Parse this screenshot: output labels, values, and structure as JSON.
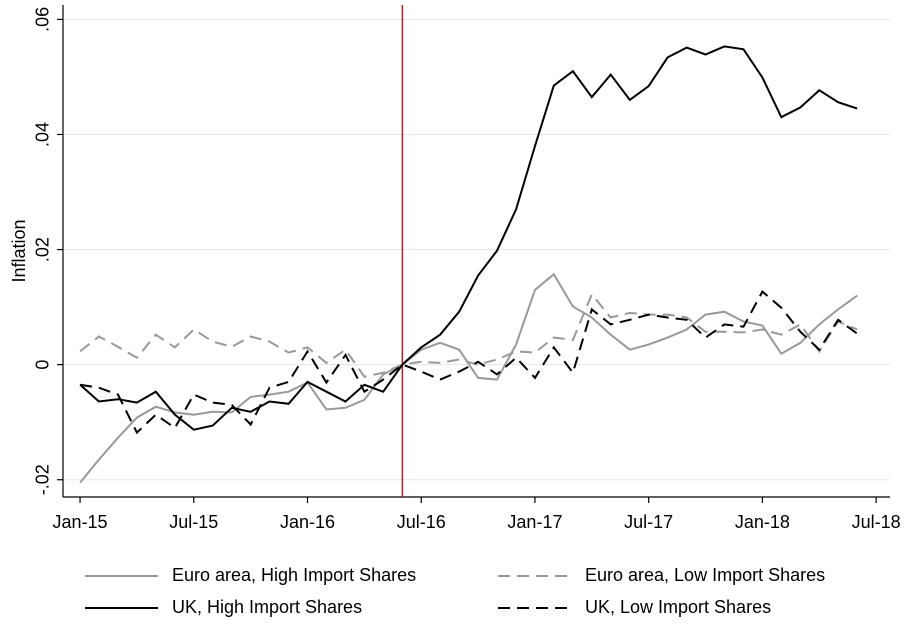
{
  "chart_data": {
    "type": "line",
    "y_label": "Inflation",
    "x": [
      2015,
      2015.083,
      2015.167,
      2015.25,
      2015.333,
      2015.417,
      2015.5,
      2015.583,
      2015.667,
      2015.75,
      2015.833,
      2015.917,
      2016,
      2016.083,
      2016.167,
      2016.25,
      2016.333,
      2016.417,
      2016.5,
      2016.583,
      2016.667,
      2016.75,
      2016.833,
      2016.917,
      2017,
      2017.083,
      2017.167,
      2017.25,
      2017.333,
      2017.417,
      2017.5,
      2017.583,
      2017.667,
      2017.75,
      2017.833,
      2017.917,
      2018,
      2018.083,
      2018.167,
      2018.25,
      2018.333,
      2018.417
    ],
    "series": [
      {
        "name": "Euro area, High Import Shares",
        "color": "#999999",
        "dashed": false,
        "values": [
          -0.0205,
          -0.0165,
          -0.0127,
          -0.0092,
          -0.0073,
          -0.0083,
          -0.0087,
          -0.0082,
          -0.0083,
          -0.0056,
          -0.0052,
          -0.0047,
          -0.0031,
          -0.0078,
          -0.0075,
          -0.0061,
          -0.0017,
          0,
          0.0026,
          0.0038,
          0.0026,
          -0.0023,
          -0.0026,
          0.0035,
          0.013,
          0.0157,
          0.0101,
          0.0082,
          0.0052,
          0.0026,
          0.0035,
          0.0047,
          0.0061,
          0.0087,
          0.0092,
          0.0075,
          0.0068,
          0.0019,
          0.0038,
          0.007,
          0.0096,
          0.012
        ]
      },
      {
        "name": "Euro area, Low Import Shares",
        "color": "#999999",
        "dashed": true,
        "values": [
          0.0023,
          0.0049,
          0.0031,
          0.0012,
          0.0052,
          0.003,
          0.0061,
          0.004,
          0.0031,
          0.0049,
          0.004,
          0.0021,
          0.003,
          0.0003,
          0.0026,
          -0.0021,
          -0.0014,
          0,
          0.0005,
          0.0003,
          0.0009,
          0,
          0.0009,
          0.0023,
          0.0021,
          0.0047,
          0.0043,
          0.0122,
          0.0082,
          0.009,
          0.0087,
          0.0087,
          0.0082,
          0.0057,
          0.0057,
          0.0056,
          0.0061,
          0.0052,
          0.007,
          0.0023,
          0.0075,
          0.0061
        ]
      },
      {
        "name": "UK, High Import Shares",
        "color": "#000000",
        "dashed": false,
        "values": [
          -0.0035,
          -0.0064,
          -0.006,
          -0.0066,
          -0.0047,
          -0.0087,
          -0.0113,
          -0.0106,
          -0.0075,
          -0.0082,
          -0.0064,
          -0.0068,
          -0.003,
          -0.0047,
          -0.0064,
          -0.0035,
          -0.0047,
          0,
          0.003,
          0.0052,
          0.0092,
          0.0155,
          0.0198,
          0.027,
          0.038,
          0.0485,
          0.051,
          0.0465,
          0.0504,
          0.046,
          0.0484,
          0.0534,
          0.0551,
          0.0539,
          0.0553,
          0.0548,
          0.0499,
          0.043,
          0.0447,
          0.0477,
          0.0456,
          0.0445
        ]
      },
      {
        "name": "UK, Low Import Shares",
        "color": "#000000",
        "dashed": true,
        "values": [
          -0.0035,
          -0.004,
          -0.0052,
          -0.0118,
          -0.0087,
          -0.011,
          -0.0052,
          -0.0066,
          -0.007,
          -0.0104,
          -0.004,
          -0.003,
          0.0023,
          -0.0031,
          0.0017,
          -0.0047,
          -0.0026,
          0,
          -0.0012,
          -0.0026,
          -0.0012,
          0.0005,
          -0.0017,
          0.0012,
          -0.0023,
          0.003,
          -0.0014,
          0.0096,
          0.007,
          0.0078,
          0.0087,
          0.0082,
          0.0078,
          0.0047,
          0.007,
          0.0066,
          0.0127,
          0.0099,
          0.0057,
          0.0026,
          0.0078,
          0.0054
        ]
      }
    ],
    "reference_line": {
      "x": 2016.417,
      "color": "#b22222"
    },
    "xlim": [
      2014.925,
      2018.561
    ],
    "xticks": [
      {
        "value": 2015,
        "label": "Jan-15"
      },
      {
        "value": 2015.5,
        "label": "Jul-15"
      },
      {
        "value": 2016,
        "label": "Jan-16"
      },
      {
        "value": 2016.5,
        "label": "Jul-16"
      },
      {
        "value": 2017,
        "label": "Jan-17"
      },
      {
        "value": 2017.5,
        "label": "Jul-17"
      },
      {
        "value": 2018,
        "label": "Jan-18"
      },
      {
        "value": 2018.5,
        "label": "Jul-18"
      }
    ],
    "ylim": [
      -0.023,
      0.0625
    ],
    "yticks": [
      {
        "value": -0.02,
        "label": "-.02"
      },
      0,
      {
        "value": 0.02,
        "label": ".02"
      },
      {
        "value": 0.04,
        "label": ".04"
      },
      {
        "value": 0.06,
        "label": ".06"
      }
    ],
    "grid": true,
    "legend": "bottom"
  }
}
